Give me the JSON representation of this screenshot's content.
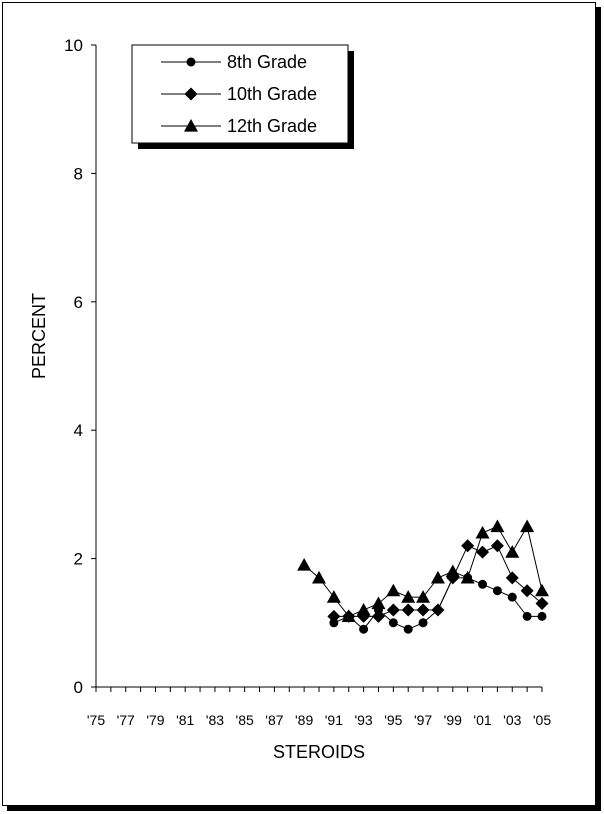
{
  "chart_data": {
    "type": "line",
    "xlabel": "STEROIDS",
    "ylabel": "PERCENT",
    "ylim": [
      0,
      10
    ],
    "yticks": [
      "0",
      "2",
      "4",
      "6",
      "8",
      "10"
    ],
    "xlim": [
      1975,
      2005
    ],
    "xticks": [
      "'75",
      "'77",
      "'79",
      "'81",
      "'83",
      "'85",
      "'87",
      "'89",
      "'91",
      "'93",
      "'95",
      "'97",
      "'99",
      "'01",
      "'03",
      "'05"
    ],
    "grid": false,
    "legend": "top-left",
    "x": [
      1975,
      1976,
      1977,
      1978,
      1979,
      1980,
      1981,
      1982,
      1983,
      1984,
      1985,
      1986,
      1987,
      1988,
      1989,
      1990,
      1991,
      1992,
      1993,
      1994,
      1995,
      1996,
      1997,
      1998,
      1999,
      2000,
      2001,
      2002,
      2003,
      2004,
      2005
    ],
    "series": [
      {
        "name": "8th Grade",
        "marker": "circle",
        "values": [
          null,
          null,
          null,
          null,
          null,
          null,
          null,
          null,
          null,
          null,
          null,
          null,
          null,
          null,
          null,
          null,
          1.0,
          1.1,
          0.9,
          1.2,
          1.0,
          0.9,
          1.0,
          1.2,
          1.7,
          1.7,
          1.6,
          1.5,
          1.4,
          1.1,
          1.1
        ]
      },
      {
        "name": "10th Grade",
        "marker": "diamond",
        "values": [
          null,
          null,
          null,
          null,
          null,
          null,
          null,
          null,
          null,
          null,
          null,
          null,
          null,
          null,
          null,
          null,
          1.1,
          1.1,
          1.1,
          1.1,
          1.2,
          1.2,
          1.2,
          1.2,
          1.7,
          2.2,
          2.1,
          2.2,
          1.7,
          1.5,
          1.3
        ]
      },
      {
        "name": "12th Grade",
        "marker": "triangle",
        "values": [
          null,
          null,
          null,
          null,
          null,
          null,
          null,
          null,
          null,
          null,
          null,
          null,
          null,
          null,
          1.9,
          1.7,
          1.4,
          1.1,
          1.2,
          1.3,
          1.5,
          1.4,
          1.4,
          1.7,
          1.8,
          1.7,
          2.4,
          2.5,
          2.1,
          2.5,
          1.5
        ]
      }
    ]
  }
}
